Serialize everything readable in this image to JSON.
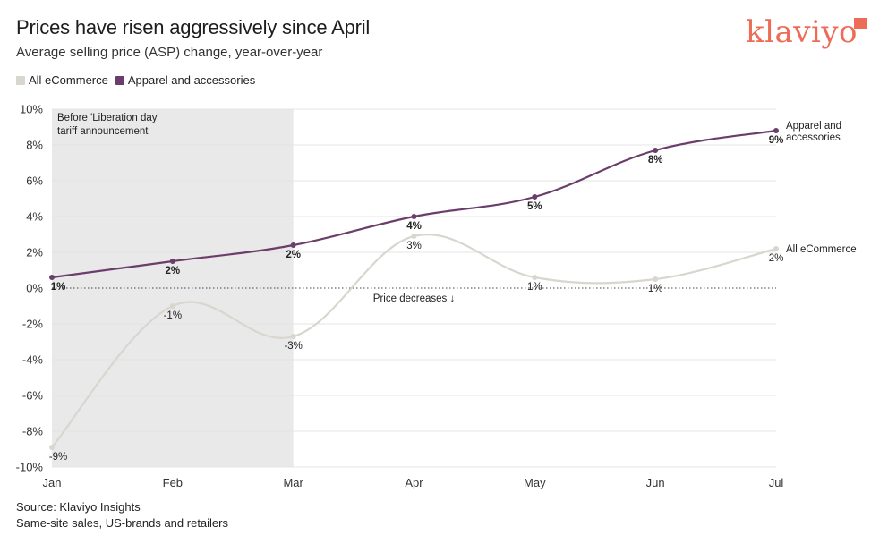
{
  "header": {
    "title": "Prices have risen aggressively since April",
    "subtitle": "Average selling price (ASP) change, year-over-year"
  },
  "brand": {
    "logo_text": "klaviyo",
    "color": "#ee6c57"
  },
  "legend": [
    {
      "label": "All eCommerce",
      "color": "#d9d6cf"
    },
    {
      "label": "Apparel and accessories",
      "color": "#6b3d6a"
    }
  ],
  "source": {
    "line1": "Source: Klaviyo Insights",
    "line2": "Same-site sales, US-brands and retailers"
  },
  "chart_data": {
    "type": "line",
    "title": "Prices have risen aggressively since April",
    "subtitle": "Average selling price (ASP) change, year-over-year",
    "x": [
      "Jan",
      "Feb",
      "Mar",
      "Apr",
      "May",
      "Jun",
      "Jul"
    ],
    "ylim": [
      -10,
      10
    ],
    "yticks": [
      10,
      8,
      6,
      4,
      2,
      0,
      -2,
      -4,
      -6,
      -8,
      -10
    ],
    "ytick_labels": [
      "10%",
      "8%",
      "6%",
      "4%",
      "2%",
      "0%",
      "-2%",
      "-4%",
      "-6%",
      "-8%",
      "-10%"
    ],
    "grid": true,
    "series": [
      {
        "name": "Apparel and accessories",
        "end_label_lines": [
          "Apparel and",
          "accessories"
        ],
        "color": "#6b3d6a",
        "values": [
          0.6,
          1.5,
          2.4,
          4.0,
          5.1,
          7.7,
          8.8
        ],
        "labels": [
          "1%",
          "2%",
          "2%",
          "4%",
          "5%",
          "8%",
          "9%"
        ]
      },
      {
        "name": "All eCommerce",
        "end_label_lines": [
          "All eCommerce"
        ],
        "color": "#d9d6cf",
        "values": [
          -8.9,
          -1.0,
          -2.7,
          2.9,
          0.6,
          0.5,
          2.2
        ],
        "labels": [
          "-9%",
          "-1%",
          "-3%",
          "3%",
          "1%",
          "1%",
          "2%"
        ]
      }
    ],
    "annotations": {
      "shaded_region": {
        "from": "Jan",
        "to": "Mar",
        "label_lines": [
          "Before 'Liberation day'",
          "tariff announcement"
        ]
      },
      "zero_line_label": "Price decreases ↓"
    }
  }
}
